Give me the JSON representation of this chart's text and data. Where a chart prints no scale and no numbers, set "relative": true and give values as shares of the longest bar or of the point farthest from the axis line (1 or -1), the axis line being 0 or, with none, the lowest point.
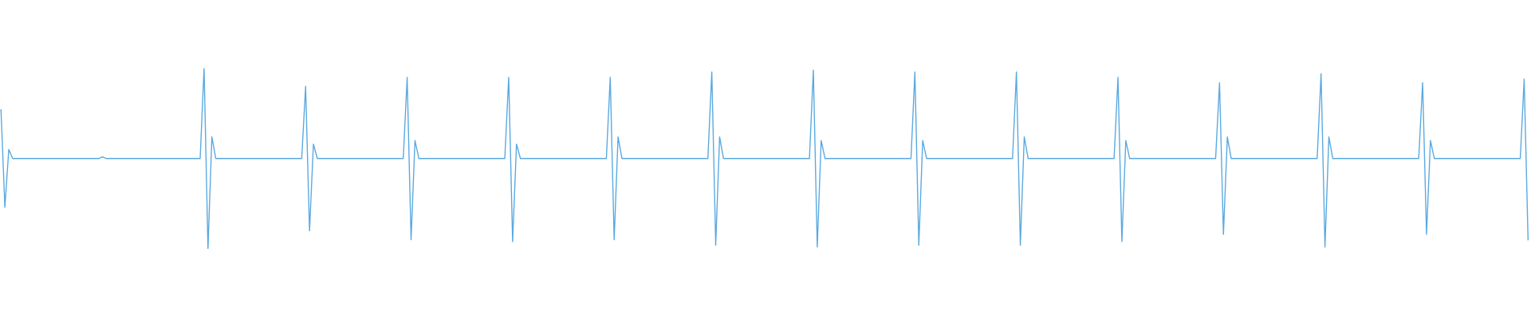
{
  "chart_data": {
    "type": "line",
    "relative": true,
    "color": "#5aa9e0",
    "marker": "none",
    "line_style": "solid",
    "categories": [
      null,
      null,
      null,
      null,
      null,
      null,
      null,
      null,
      null,
      null,
      null,
      null,
      null,
      null,
      null,
      null,
      null,
      null,
      null,
      null,
      null,
      null,
      null,
      null,
      null,
      null,
      null,
      null,
      null,
      null,
      null,
      null,
      null,
      null,
      null,
      null,
      null,
      null,
      null,
      null,
      null,
      null,
      null,
      null,
      null,
      null,
      null,
      null,
      null,
      null,
      null,
      null,
      null,
      null,
      null,
      null,
      null,
      null,
      null,
      null,
      null,
      null,
      null,
      null,
      null,
      null,
      null,
      null,
      null,
      null,
      null,
      null,
      null,
      null,
      null,
      null,
      null,
      null,
      null,
      null,
      null,
      null,
      null,
      null,
      null,
      null,
      null,
      null,
      null,
      null,
      null,
      null,
      null,
      null,
      null,
      null,
      null,
      null,
      null,
      null,
      null,
      null,
      null,
      null,
      null,
      null,
      null,
      null,
      null,
      null,
      null,
      null,
      null,
      null,
      null,
      null,
      null,
      null,
      null,
      null,
      null,
      null,
      null,
      null,
      null,
      null,
      null,
      null,
      null,
      null,
      null,
      null,
      null,
      null,
      null,
      null,
      null,
      null,
      null,
      null,
      null,
      null,
      null,
      null,
      null,
      null,
      null,
      null,
      null,
      null,
      null,
      null,
      null,
      null,
      null,
      null,
      null,
      null,
      null,
      null,
      null,
      null,
      null,
      null,
      null,
      null,
      null,
      null,
      null,
      null,
      null,
      null,
      null,
      null,
      null,
      null,
      null,
      null,
      null,
      null,
      null,
      null,
      null,
      null,
      null,
      null,
      null,
      null,
      null,
      null,
      null,
      null,
      null,
      null,
      null,
      null,
      null,
      null,
      null,
      null,
      null,
      null,
      null,
      null,
      null,
      null,
      null,
      null,
      null,
      null,
      null,
      null,
      null,
      null,
      null,
      null,
      null,
      null,
      null,
      null,
      null,
      null,
      null,
      null,
      null,
      null,
      null,
      null,
      null,
      null,
      null,
      null,
      null,
      null,
      null,
      null,
      null,
      null,
      null,
      null,
      null,
      null,
      null,
      null,
      null,
      null,
      null,
      null,
      null,
      null,
      null,
      null,
      null,
      null,
      null,
      null,
      null,
      null,
      null,
      null,
      null,
      null,
      null,
      null,
      null,
      null,
      null,
      null,
      null,
      null,
      null,
      null,
      null,
      null,
      null,
      null,
      null,
      null,
      null,
      null,
      null,
      null,
      null,
      null,
      null,
      null,
      null,
      null,
      null,
      null,
      null,
      null,
      null,
      null,
      null,
      null,
      null,
      null,
      null,
      null,
      null,
      null,
      null,
      null,
      null,
      null,
      null,
      null,
      null,
      null,
      null,
      null,
      null,
      null,
      null,
      null,
      null,
      null,
      null,
      null,
      null,
      null,
      null,
      null,
      null,
      null,
      null,
      null,
      null,
      null,
      null,
      null,
      null,
      null,
      null,
      null,
      null,
      null,
      null,
      null,
      null,
      null,
      null,
      null,
      null,
      null,
      null,
      null,
      null,
      null,
      null,
      null,
      null,
      null,
      null,
      null,
      null,
      null,
      null,
      null,
      null,
      null,
      null,
      null,
      null,
      null,
      null,
      null,
      null,
      null,
      null,
      null,
      null,
      null,
      null,
      null,
      null,
      null,
      null,
      null,
      null,
      null,
      null,
      null,
      null,
      null,
      null,
      null,
      null,
      null,
      null,
      null
    ],
    "values": [
      0.77,
      0.23,
      0.55,
      0.5,
      0.5,
      0.5,
      0.5,
      0.5,
      0.5,
      0.5,
      0.5,
      0.5,
      0.5,
      0.5,
      0.5,
      0.5,
      0.5,
      0.5,
      0.5,
      0.5,
      0.5,
      0.5,
      0.5,
      0.5,
      0.5,
      0.5,
      0.51,
      0.5,
      0.5,
      0.5,
      0.5,
      0.5,
      0.5,
      0.5,
      0.5,
      0.5,
      0.5,
      0.5,
      0.5,
      0.5,
      0.5,
      0.5,
      0.5,
      0.5,
      0.5,
      0.5,
      0.5,
      0.5,
      0.5,
      0.5,
      0.5,
      0.5,
      1.0,
      0.0,
      0.62,
      0.5,
      0.5,
      0.5,
      0.5,
      0.5,
      0.5,
      0.5,
      0.5,
      0.5,
      0.5,
      0.5,
      0.5,
      0.5,
      0.5,
      0.5,
      0.5,
      0.5,
      0.5,
      0.5,
      0.5,
      0.5,
      0.5,
      0.5,
      0.9,
      0.1,
      0.58,
      0.5,
      0.5,
      0.5,
      0.5,
      0.5,
      0.5,
      0.5,
      0.5,
      0.5,
      0.5,
      0.5,
      0.5,
      0.5,
      0.5,
      0.5,
      0.5,
      0.5,
      0.5,
      0.5,
      0.5,
      0.5,
      0.5,
      0.5,
      0.95,
      0.05,
      0.6,
      0.5,
      0.5,
      0.5,
      0.5,
      0.5,
      0.5,
      0.5,
      0.5,
      0.5,
      0.5,
      0.5,
      0.5,
      0.5,
      0.5,
      0.5,
      0.5,
      0.5,
      0.5,
      0.5,
      0.5,
      0.5,
      0.5,
      0.5,
      0.95,
      0.04,
      0.58,
      0.5,
      0.5,
      0.5,
      0.5,
      0.5,
      0.5,
      0.5,
      0.5,
      0.5,
      0.5,
      0.5,
      0.5,
      0.5,
      0.5,
      0.5,
      0.5,
      0.5,
      0.5,
      0.5,
      0.5,
      0.5,
      0.5,
      0.5,
      0.95,
      0.05,
      0.62,
      0.5,
      0.5,
      0.5,
      0.5,
      0.5,
      0.5,
      0.5,
      0.5,
      0.5,
      0.5,
      0.5,
      0.5,
      0.5,
      0.5,
      0.5,
      0.5,
      0.5,
      0.5,
      0.5,
      0.5,
      0.5,
      0.5,
      0.5,
      0.98,
      0.02,
      0.62,
      0.5,
      0.5,
      0.5,
      0.5,
      0.5,
      0.5,
      0.5,
      0.5,
      0.5,
      0.5,
      0.5,
      0.5,
      0.5,
      0.5,
      0.5,
      0.5,
      0.5,
      0.5,
      0.5,
      0.5,
      0.5,
      0.5,
      0.5,
      0.99,
      0.01,
      0.6,
      0.5,
      0.5,
      0.5,
      0.5,
      0.5,
      0.5,
      0.5,
      0.5,
      0.5,
      0.5,
      0.5,
      0.5,
      0.5,
      0.5,
      0.5,
      0.5,
      0.5,
      0.5,
      0.5,
      0.5,
      0.5,
      0.5,
      0.5,
      0.98,
      0.02,
      0.6,
      0.5,
      0.5,
      0.5,
      0.5,
      0.5,
      0.5,
      0.5,
      0.5,
      0.5,
      0.5,
      0.5,
      0.5,
      0.5,
      0.5,
      0.5,
      0.5,
      0.5,
      0.5,
      0.5,
      0.5,
      0.5,
      0.5,
      0.5,
      0.98,
      0.02,
      0.62,
      0.5,
      0.5,
      0.5,
      0.5,
      0.5,
      0.5,
      0.5,
      0.5,
      0.5,
      0.5,
      0.5,
      0.5,
      0.5,
      0.5,
      0.5,
      0.5,
      0.5,
      0.5,
      0.5,
      0.5,
      0.5,
      0.5,
      0.5,
      0.95,
      0.04,
      0.6,
      0.5,
      0.5,
      0.5,
      0.5,
      0.5,
      0.5,
      0.5,
      0.5,
      0.5,
      0.5,
      0.5,
      0.5,
      0.5,
      0.5,
      0.5,
      0.5,
      0.5,
      0.5,
      0.5,
      0.5,
      0.5,
      0.5,
      0.5,
      0.92,
      0.08,
      0.62,
      0.5,
      0.5,
      0.5,
      0.5,
      0.5,
      0.5,
      0.5,
      0.5,
      0.5,
      0.5,
      0.5,
      0.5,
      0.5,
      0.5,
      0.5,
      0.5,
      0.5,
      0.5,
      0.5,
      0.5,
      0.5,
      0.5,
      0.5,
      0.97,
      0.01,
      0.62,
      0.5,
      0.5,
      0.5,
      0.5,
      0.5,
      0.5,
      0.5,
      0.5,
      0.5,
      0.5,
      0.5,
      0.5,
      0.5,
      0.5,
      0.5,
      0.5,
      0.5,
      0.5,
      0.5,
      0.5,
      0.5,
      0.5,
      0.5,
      0.92,
      0.08,
      0.6,
      0.5,
      0.5,
      0.5,
      0.5,
      0.5,
      0.5,
      0.5,
      0.5,
      0.5,
      0.5,
      0.5,
      0.5,
      0.5,
      0.5,
      0.5,
      0.5,
      0.5,
      0.5,
      0.5,
      0.5,
      0.5,
      0.5,
      0.5,
      0.94,
      0.05
    ]
  }
}
